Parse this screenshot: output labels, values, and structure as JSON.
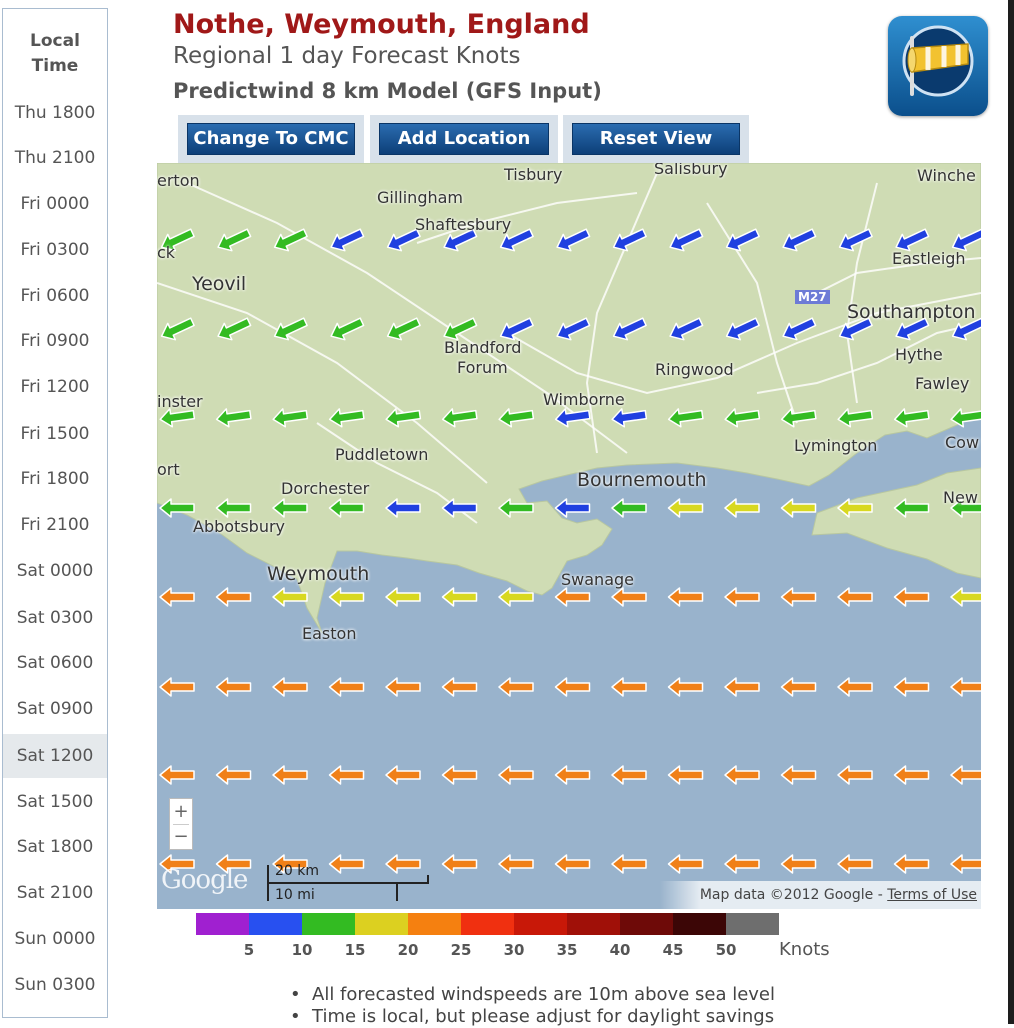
{
  "sidebar": {
    "header_line1": "Local",
    "header_line2": "Time",
    "times": [
      "Thu 1800",
      "Thu 2100",
      "Fri 0000",
      "Fri 0300",
      "Fri 0600",
      "Fri 0900",
      "Fri 1200",
      "Fri 1500",
      "Fri 1800",
      "Fri 2100",
      "Sat 0000",
      "Sat 0300",
      "Sat 0600",
      "Sat 0900",
      "Sat 1200",
      "Sat 1500",
      "Sat 1800",
      "Sat 2100",
      "Sun 0000",
      "Sun 0300"
    ],
    "selected": "Sat 1200"
  },
  "header": {
    "title": "Nothe, Weymouth, England",
    "subtitle": "Regional 1 day Forecast Knots",
    "model": "Predictwind 8 km Model (GFS Input)"
  },
  "buttons": {
    "change_model": "Change To CMC",
    "add_location": "Add Location",
    "reset_view": "Reset View"
  },
  "map": {
    "places": [
      "erton",
      "Gillingham",
      "Tisbury",
      "Salisbury",
      "Winche",
      "Shaftesbury",
      "ck",
      "Eastleigh",
      "Yeovil",
      "M27",
      "Southampton",
      "Blandford",
      "Forum",
      "Hythe",
      "Ringwood",
      "Fawley",
      "Wimborne",
      "inster",
      "Lymington",
      "Cow",
      "Puddletown",
      "ort",
      "Bournemouth",
      "Dorchester",
      "New",
      "Abbotsbury",
      "Weymouth",
      "Swanage",
      "Easton"
    ],
    "zoom_in": "+",
    "zoom_out": "−",
    "google_logo": "Google",
    "scale_km": "20 km",
    "scale_mi": "10 mi",
    "attribution": "Map data ©2012 Google - ",
    "terms": "Terms of Use",
    "colors": {
      "land": "#cfdcb4",
      "sea": "#99b3cc",
      "road": "#ffffff",
      "coast": "#b8c7a0"
    }
  },
  "wind": {
    "direction": "easterly (arrows point west)",
    "rows": [
      [
        "green",
        "green",
        "green",
        "blue",
        "blue",
        "blue",
        "blue",
        "blue",
        "blue",
        "blue",
        "blue",
        "blue",
        "blue",
        "blue",
        "blue"
      ],
      [
        "green",
        "green",
        "green",
        "green",
        "green",
        "green",
        "blue",
        "blue",
        "blue",
        "blue",
        "blue",
        "blue",
        "blue",
        "blue",
        "blue"
      ],
      [
        "green",
        "green",
        "green",
        "green",
        "green",
        "green",
        "green",
        "blue",
        "blue",
        "green",
        "green",
        "green",
        "green",
        "green",
        "green"
      ],
      [
        "green",
        "green",
        "green",
        "green",
        "blue",
        "blue",
        "green",
        "blue",
        "green",
        "yellow",
        "yellow",
        "yellow",
        "yellow",
        "green",
        "green"
      ],
      [
        "orange",
        "orange",
        "yellow",
        "yellow",
        "yellow",
        "yellow",
        "yellow",
        "orange",
        "orange",
        "orange",
        "orange",
        "orange",
        "orange",
        "orange",
        "yellow"
      ],
      [
        "orange",
        "orange",
        "orange",
        "orange",
        "orange",
        "orange",
        "orange",
        "orange",
        "orange",
        "orange",
        "orange",
        "orange",
        "orange",
        "orange",
        "orange"
      ],
      [
        "orange",
        "orange",
        "orange",
        "orange",
        "orange",
        "orange",
        "orange",
        "orange",
        "orange",
        "orange",
        "orange",
        "orange",
        "orange",
        "orange",
        "orange"
      ],
      [
        "orange",
        "orange",
        "orange",
        "orange",
        "orange",
        "orange",
        "orange",
        "orange",
        "orange",
        "orange",
        "orange",
        "orange",
        "orange",
        "orange",
        "orange"
      ]
    ],
    "palette": {
      "blue": "#2040e0",
      "green": "#33bb22",
      "yellow": "#d8d820",
      "orange": "#f08018"
    }
  },
  "legend": {
    "colors": [
      "#a020d0",
      "#2850f0",
      "#33bb22",
      "#dcd020",
      "#f58010",
      "#f03010",
      "#c81808",
      "#a01008",
      "#6e0a08",
      "#3c0606",
      "#6e6e6e"
    ],
    "labels": [
      "5",
      "10",
      "15",
      "20",
      "25",
      "30",
      "35",
      "40",
      "45",
      "50"
    ],
    "unit": "Knots"
  },
  "notes": [
    "All forecasted windspeeds are 10m above sea level",
    "Time is local, but please adjust for daylight savings"
  ]
}
